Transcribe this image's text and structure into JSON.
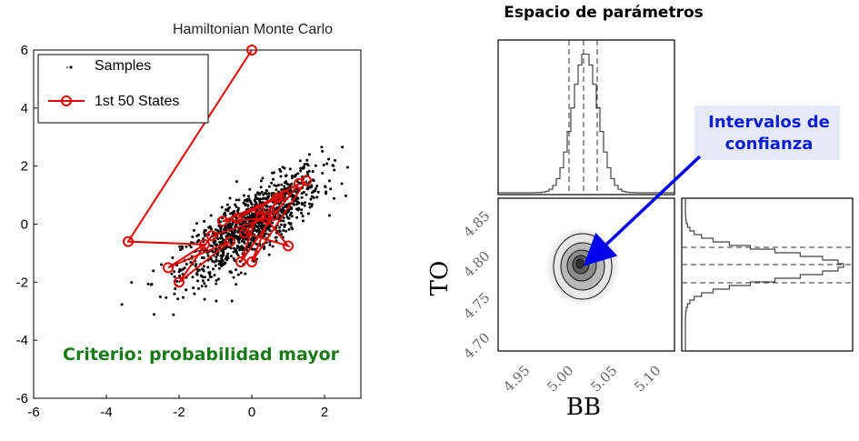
{
  "left_chart": {
    "title": "Hamiltonian Monte Carlo",
    "legend": {
      "samples_label": "Samples",
      "states_label": "1st 50 States"
    },
    "annotation": "Criterio: probabilidad mayor",
    "colors": {
      "samples": "#000000",
      "states": "#e00000",
      "annotation": "#1a7a1a"
    }
  },
  "right_panel": {
    "title": "Espacio de parámetros",
    "annotation_line1": "Intervalos de",
    "annotation_line2": "confianza",
    "xlabel": "BB",
    "ylabel": "TO",
    "colors": {
      "annotation_text": "#0b1fd1",
      "annotation_box": "#e6e9f7",
      "arrow": "#0000ee"
    }
  },
  "chart_data": [
    {
      "type": "scatter",
      "title": "Hamiltonian Monte Carlo",
      "xlim": [
        -6,
        3
      ],
      "ylim": [
        -6,
        6
      ],
      "x_ticks": [
        -6,
        -4,
        -2,
        0,
        2
      ],
      "y_ticks": [
        -6,
        -4,
        -2,
        0,
        2,
        4,
        6
      ],
      "series": [
        {
          "name": "Samples",
          "kind": "points",
          "distribution": {
            "center": [
              0,
              0
            ],
            "cloud_extent_x": [
              -4,
              2.8
            ],
            "cloud_extent_y": [
              -3.6,
              3.4
            ],
            "correlation": "positive"
          }
        },
        {
          "name": "1st 50 States",
          "kind": "line+markers",
          "points": [
            [
              0,
              6
            ],
            [
              -3.4,
              -0.6
            ],
            [
              -1.3,
              -0.7
            ],
            [
              -2.3,
              -1.5
            ],
            [
              -0.6,
              -0.6
            ],
            [
              -2.0,
              -2.0
            ],
            [
              -1.1,
              -0.4
            ],
            [
              0.4,
              0.2
            ],
            [
              -0.8,
              0.1
            ],
            [
              0.9,
              1.0
            ],
            [
              -0.2,
              -0.3
            ],
            [
              1.0,
              -0.75
            ],
            [
              0.2,
              0.5
            ],
            [
              -0.3,
              -1.3
            ],
            [
              0.6,
              0.3
            ],
            [
              1.3,
              1.4
            ],
            [
              -0.4,
              0.2
            ],
            [
              0.7,
              0.9
            ],
            [
              0.0,
              -1.3
            ],
            [
              1.5,
              1.5
            ]
          ]
        }
      ],
      "legend_position": "top-left"
    },
    {
      "type": "histogram",
      "panel": "BB marginal",
      "x_range": [
        4.93,
        5.12
      ],
      "dashed_quantiles": [
        5.01,
        5.03,
        5.045
      ],
      "peak": 5.03
    },
    {
      "type": "heatmap",
      "panel": "BB vs TO joint density",
      "xlabel": "BB",
      "ylabel": "TO",
      "x_ticks": [
        "4.95",
        "5.00",
        "5.05",
        "5.10"
      ],
      "y_ticks": [
        "4.70",
        "4.75",
        "4.80",
        "4.85"
      ],
      "center": [
        5.03,
        4.805
      ]
    },
    {
      "type": "histogram",
      "panel": "TO marginal",
      "orientation": "horizontal",
      "dashed_quantiles": [
        4.825,
        4.8,
        4.78
      ],
      "peak": 4.805
    }
  ]
}
